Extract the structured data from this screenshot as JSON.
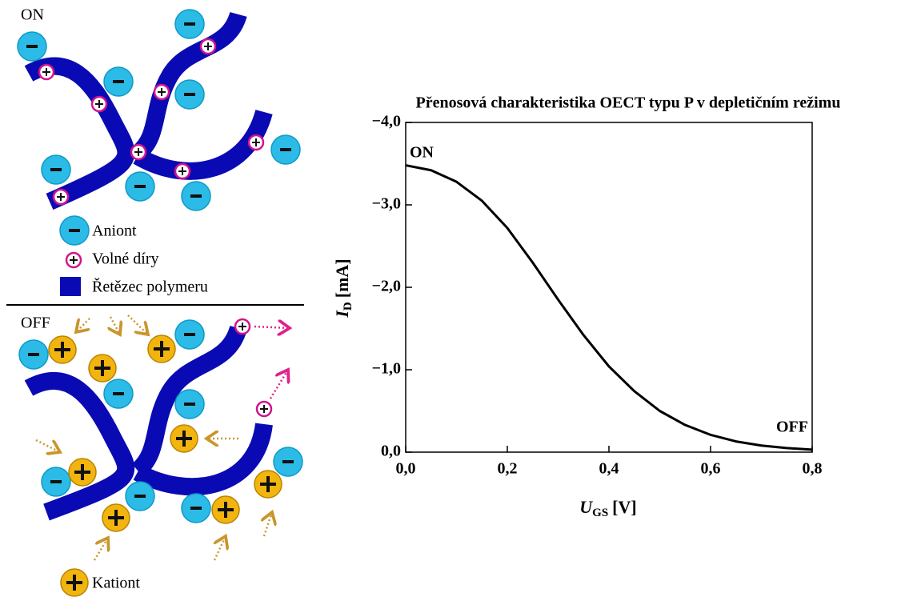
{
  "diagram": {
    "top_label": "ON",
    "bottom_label": "OFF",
    "legend": [
      "Aniont",
      "Volné díry",
      "Řetězec polymeru",
      "Kationt"
    ]
  },
  "chart_data": {
    "type": "line",
    "title": "Přenosová charakteristika OECT typu P v depletičním režimu",
    "x_label": {
      "symbol": "U",
      "subscript": "GS",
      "unit": "[V]"
    },
    "y_label": {
      "symbol": "I",
      "subscript": "D",
      "unit": "[mA]"
    },
    "annotations": [
      "ON",
      "OFF"
    ],
    "x": [
      0,
      0.05,
      0.1,
      0.15,
      0.2,
      0.25,
      0.3,
      0.35,
      0.4,
      0.45,
      0.5,
      0.55,
      0.6,
      0.65,
      0.7,
      0.75,
      0.8
    ],
    "series": [
      {
        "color": "#000000",
        "values": [
          -3.48,
          -3.42,
          -3.28,
          -3.05,
          -2.72,
          -2.3,
          -1.85,
          -1.42,
          -1.04,
          -0.74,
          -0.5,
          -0.33,
          -0.21,
          -0.13,
          -0.08,
          -0.05,
          -0.03
        ]
      }
    ],
    "xlim": [
      0,
      0.8
    ],
    "ylim": [
      0,
      -4
    ],
    "xticks": [
      {
        "value": 0,
        "label": "0,0"
      },
      {
        "value": 0.2,
        "label": "0,2"
      },
      {
        "value": 0.4,
        "label": "0,4"
      },
      {
        "value": 0.6,
        "label": "0,6"
      },
      {
        "value": 0.8,
        "label": "0,8"
      }
    ],
    "yticks": [
      {
        "value": 0,
        "label": "0,0"
      },
      {
        "value": -1,
        "label": "−1,0"
      },
      {
        "value": -2,
        "label": "−2,0"
      },
      {
        "value": -3,
        "label": "−3,0"
      },
      {
        "value": -4,
        "label": "−4,0"
      }
    ]
  }
}
